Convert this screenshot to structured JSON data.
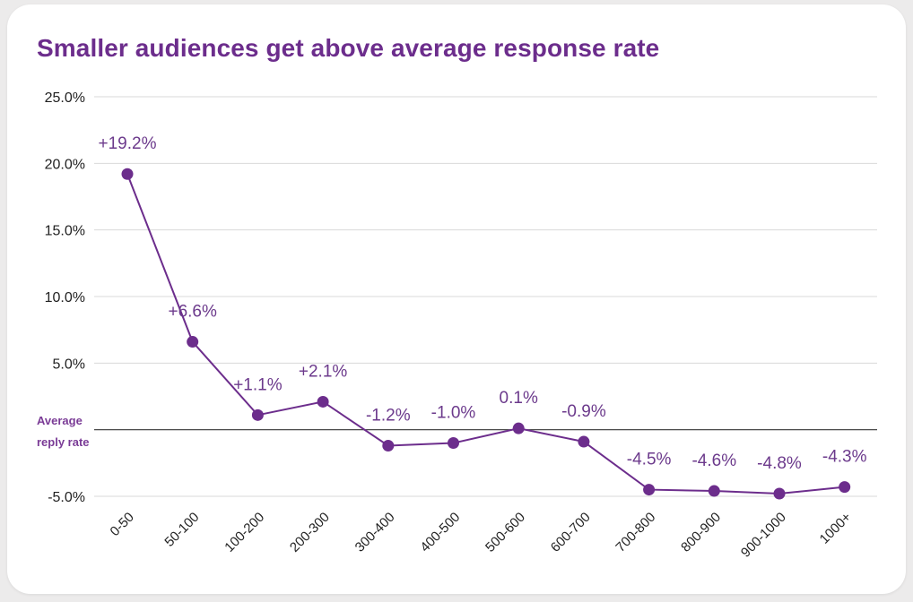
{
  "chart_data": {
    "type": "line",
    "title": "Smaller audiences get above average response rate",
    "categories": [
      "0-50",
      "50-100",
      "100-200",
      "200-300",
      "300-400",
      "400-500",
      "500-600",
      "600-700",
      "700-800",
      "800-900",
      "900-1000",
      "1000+"
    ],
    "values": [
      19.2,
      6.6,
      1.1,
      2.1,
      -1.2,
      -1.0,
      0.1,
      -0.9,
      -4.5,
      -4.6,
      -4.8,
      -4.3
    ],
    "data_labels": [
      "+19.2%",
      "+6.6%",
      "+1.1%",
      "+2.1%",
      "-1.2%",
      "-1.0%",
      "0.1%",
      "-0.9%",
      "-4.5%",
      "-4.6%",
      "-4.8%",
      "-4.3%"
    ],
    "yticks": [
      25,
      20,
      15,
      10,
      5,
      -5
    ],
    "ytick_labels": [
      "25.0%",
      "20.0%",
      "15.0%",
      "10.0%",
      "5.0%",
      "-5.0%"
    ],
    "ylim": [
      -5,
      25
    ],
    "reference_line": {
      "value": 0,
      "label_line1": "Average",
      "label_line2": "reply rate"
    },
    "grid": true,
    "xlabel": "",
    "ylabel": "",
    "colors": {
      "series": "#6c2d8c",
      "title": "#6c2d8c",
      "grid": "#d9d9d9",
      "reference": "#333333"
    }
  }
}
